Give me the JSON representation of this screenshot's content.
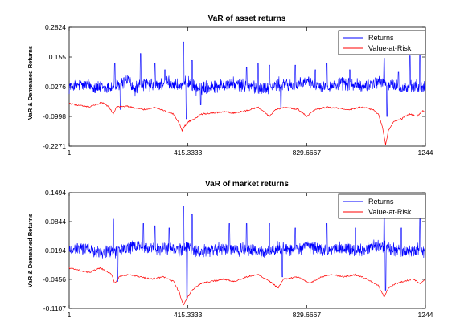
{
  "chart_data": [
    {
      "type": "line",
      "title": "VaR of asset returns",
      "xlabel": "",
      "ylabel": "VaR & Demeaned Returns",
      "xlim": [
        1,
        1244
      ],
      "ylim": [
        -0.2271,
        0.2824
      ],
      "x_ticks": [
        "1",
        "415.3333",
        "829.6667",
        "1244"
      ],
      "y_ticks": [
        "0.2824",
        "0.155",
        "0.0276",
        "-0.0998",
        "-0.2271"
      ],
      "grid": false,
      "legend_position": "top-right",
      "series": [
        {
          "name": "Returns",
          "color": "#0000ff",
          "style": "noisy series centred near 0.0276",
          "points": [
            [
              1,
              0.03
            ],
            [
              60,
              0.035
            ],
            [
              120,
              0.02
            ],
            [
              170,
              0.03
            ],
            [
              210,
              0.06
            ],
            [
              225,
              0.01
            ],
            [
              250,
              0.04
            ],
            [
              300,
              0.03
            ],
            [
              340,
              0.05
            ],
            [
              390,
              0.03
            ],
            [
              415,
              0.05
            ],
            [
              440,
              0.02
            ],
            [
              500,
              0.03
            ],
            [
              560,
              0.04
            ],
            [
              620,
              0.03
            ],
            [
              680,
              0.02
            ],
            [
              740,
              0.04
            ],
            [
              800,
              0.03
            ],
            [
              830,
              0.05
            ],
            [
              900,
              0.03
            ],
            [
              960,
              0.04
            ],
            [
              1020,
              0.03
            ],
            [
              1080,
              0.05
            ],
            [
              1120,
              0.04
            ],
            [
              1170,
              0.02
            ],
            [
              1220,
              0.03
            ],
            [
              1244,
              0.025
            ]
          ],
          "extremes": [
            [
              160,
              0.13
            ],
            [
              180,
              -0.07
            ],
            [
              250,
              0.17
            ],
            [
              300,
              0.13
            ],
            [
              335,
              0.1
            ],
            [
              400,
              0.22
            ],
            [
              410,
              -0.11
            ],
            [
              430,
              0.14
            ],
            [
              460,
              -0.05
            ],
            [
              620,
              0.11
            ],
            [
              660,
              0.13
            ],
            [
              700,
              0.12
            ],
            [
              740,
              -0.06
            ],
            [
              790,
              0.12
            ],
            [
              860,
              0.1
            ],
            [
              900,
              0.13
            ],
            [
              980,
              0.1
            ],
            [
              1100,
              0.15
            ],
            [
              1110,
              -0.1
            ],
            [
              1150,
              0.09
            ],
            [
              1190,
              0.16
            ],
            [
              1225,
              0.22
            ]
          ]
        },
        {
          "name": "Value-at-Risk",
          "color": "#ff0000",
          "points": [
            [
              1,
              -0.045
            ],
            [
              70,
              -0.06
            ],
            [
              115,
              -0.04
            ],
            [
              140,
              -0.06
            ],
            [
              155,
              -0.09
            ],
            [
              165,
              -0.06
            ],
            [
              200,
              -0.055
            ],
            [
              235,
              -0.065
            ],
            [
              265,
              -0.07
            ],
            [
              300,
              -0.06
            ],
            [
              330,
              -0.075
            ],
            [
              365,
              -0.09
            ],
            [
              385,
              -0.13
            ],
            [
              395,
              -0.16
            ],
            [
              405,
              -0.14
            ],
            [
              420,
              -0.12
            ],
            [
              440,
              -0.11
            ],
            [
              460,
              -0.09
            ],
            [
              500,
              -0.085
            ],
            [
              540,
              -0.08
            ],
            [
              580,
              -0.085
            ],
            [
              620,
              -0.075
            ],
            [
              660,
              -0.06
            ],
            [
              700,
              -0.1
            ],
            [
              720,
              -0.07
            ],
            [
              760,
              -0.06
            ],
            [
              800,
              -0.07
            ],
            [
              830,
              -0.1
            ],
            [
              860,
              -0.07
            ],
            [
              900,
              -0.06
            ],
            [
              940,
              -0.065
            ],
            [
              980,
              -0.07
            ],
            [
              1020,
              -0.06
            ],
            [
              1060,
              -0.07
            ],
            [
              1080,
              -0.09
            ],
            [
              1095,
              -0.15
            ],
            [
              1105,
              -0.22
            ],
            [
              1115,
              -0.16
            ],
            [
              1135,
              -0.12
            ],
            [
              1160,
              -0.11
            ],
            [
              1190,
              -0.09
            ],
            [
              1215,
              -0.1
            ],
            [
              1235,
              -0.075
            ],
            [
              1244,
              -0.085
            ]
          ]
        }
      ]
    },
    {
      "type": "line",
      "title": "VaR of market returns",
      "xlabel": "",
      "ylabel": "VaR & Demeaned Returns",
      "xlim": [
        1,
        1244
      ],
      "ylim": [
        -0.1107,
        0.1494
      ],
      "x_ticks": [
        "1",
        "415.3333",
        "829.6667",
        "1244"
      ],
      "y_ticks": [
        "0.1494",
        "0.0844",
        "0.0194",
        "-0.0456",
        "-0.1107"
      ],
      "grid": false,
      "legend_position": "top-right",
      "series": [
        {
          "name": "Returns",
          "color": "#0000ff",
          "style": "noisy series centred near 0.0194",
          "points": [
            [
              1,
              0.02
            ],
            [
              60,
              0.025
            ],
            [
              120,
              0.015
            ],
            [
              170,
              0.02
            ],
            [
              210,
              0.025
            ],
            [
              250,
              0.03
            ],
            [
              300,
              0.02
            ],
            [
              340,
              0.025
            ],
            [
              390,
              0.02
            ],
            [
              415,
              0.03
            ],
            [
              440,
              0.015
            ],
            [
              500,
              0.02
            ],
            [
              560,
              0.025
            ],
            [
              620,
              0.02
            ],
            [
              680,
              0.015
            ],
            [
              740,
              0.025
            ],
            [
              800,
              0.02
            ],
            [
              830,
              0.03
            ],
            [
              900,
              0.02
            ],
            [
              960,
              0.025
            ],
            [
              1020,
              0.02
            ],
            [
              1080,
              0.03
            ],
            [
              1120,
              0.025
            ],
            [
              1170,
              0.015
            ],
            [
              1220,
              0.02
            ],
            [
              1244,
              0.015
            ]
          ],
          "extremes": [
            [
              155,
              0.09
            ],
            [
              170,
              -0.05
            ],
            [
              260,
              0.08
            ],
            [
              300,
              0.075
            ],
            [
              350,
              0.07
            ],
            [
              400,
              0.12
            ],
            [
              412,
              -0.09
            ],
            [
              430,
              0.1
            ],
            [
              560,
              0.08
            ],
            [
              620,
              0.08
            ],
            [
              700,
              0.08
            ],
            [
              745,
              -0.04
            ],
            [
              790,
              0.07
            ],
            [
              900,
              0.08
            ],
            [
              1000,
              0.07
            ],
            [
              1100,
              0.1
            ],
            [
              1105,
              -0.07
            ],
            [
              1160,
              0.07
            ],
            [
              1225,
              0.09
            ]
          ]
        },
        {
          "name": "Value-at-Risk",
          "color": "#ff0000",
          "points": [
            [
              1,
              -0.02
            ],
            [
              70,
              -0.03
            ],
            [
              110,
              -0.02
            ],
            [
              150,
              -0.035
            ],
            [
              160,
              -0.055
            ],
            [
              175,
              -0.04
            ],
            [
              210,
              -0.035
            ],
            [
              250,
              -0.04
            ],
            [
              290,
              -0.045
            ],
            [
              330,
              -0.04
            ],
            [
              365,
              -0.05
            ],
            [
              385,
              -0.075
            ],
            [
              400,
              -0.105
            ],
            [
              410,
              -0.09
            ],
            [
              430,
              -0.07
            ],
            [
              460,
              -0.055
            ],
            [
              500,
              -0.05
            ],
            [
              540,
              -0.045
            ],
            [
              580,
              -0.05
            ],
            [
              620,
              -0.04
            ],
            [
              660,
              -0.035
            ],
            [
              700,
              -0.05
            ],
            [
              730,
              -0.065
            ],
            [
              750,
              -0.045
            ],
            [
              800,
              -0.04
            ],
            [
              840,
              -0.055
            ],
            [
              880,
              -0.04
            ],
            [
              920,
              -0.035
            ],
            [
              960,
              -0.04
            ],
            [
              1000,
              -0.035
            ],
            [
              1040,
              -0.045
            ],
            [
              1080,
              -0.06
            ],
            [
              1100,
              -0.085
            ],
            [
              1115,
              -0.065
            ],
            [
              1140,
              -0.055
            ],
            [
              1170,
              -0.05
            ],
            [
              1200,
              -0.045
            ],
            [
              1225,
              -0.055
            ],
            [
              1244,
              -0.045
            ]
          ]
        }
      ]
    }
  ]
}
